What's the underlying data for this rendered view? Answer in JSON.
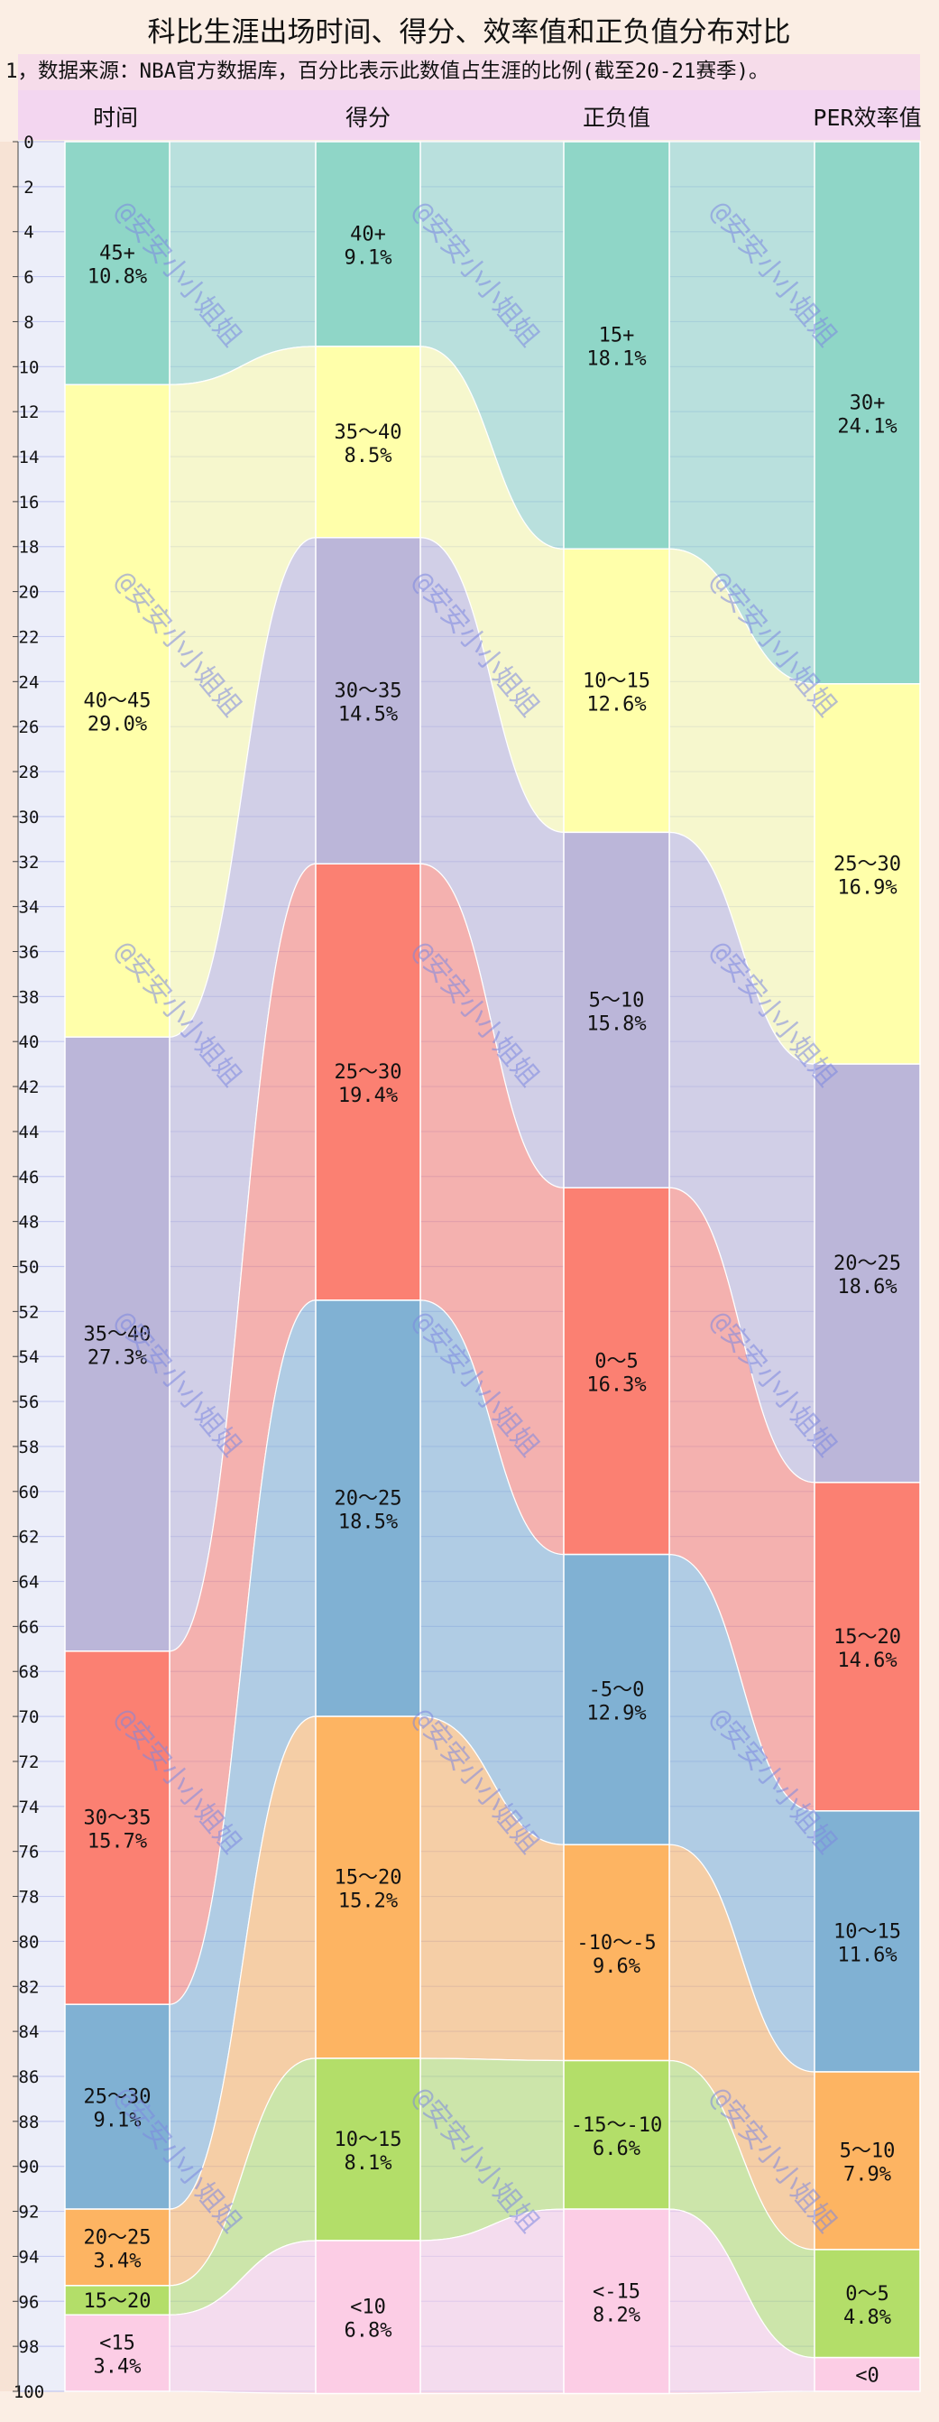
{
  "chart_data": {
    "type": "alluvial",
    "title": "科比生涯出场时间、得分、效率值和正负值分布对比",
    "subtitle": "1，数据来源：NBA官方数据库，百分比表示此数值占生涯的比例(截至20-21赛季)。",
    "watermark": "@安安小小姐姐",
    "ylim": [
      0,
      100
    ],
    "yticks": [
      0,
      2,
      4,
      6,
      8,
      10,
      12,
      14,
      16,
      18,
      20,
      22,
      24,
      26,
      28,
      30,
      32,
      34,
      36,
      38,
      40,
      42,
      44,
      46,
      48,
      50,
      52,
      54,
      56,
      58,
      60,
      62,
      64,
      66,
      68,
      70,
      72,
      74,
      76,
      78,
      80,
      82,
      84,
      86,
      88,
      90,
      92,
      94,
      96,
      98,
      100
    ],
    "colors": {
      "teal": "#8fd6c7",
      "yellow": "#ffffaa",
      "purple": "#bbb6d9",
      "red": "#fb8072",
      "blue": "#80b1d3",
      "orange": "#fdb462",
      "green": "#b3de69",
      "pink": "#fccde5"
    },
    "columns": [
      {
        "name": "时间",
        "segments": [
          {
            "label": "45+",
            "value": 10.8,
            "color": "teal"
          },
          {
            "label": "40～45",
            "value": 29.0,
            "color": "yellow"
          },
          {
            "label": "35～40",
            "value": 27.3,
            "color": "purple"
          },
          {
            "label": "30～35",
            "value": 15.7,
            "color": "red"
          },
          {
            "label": "25～30",
            "value": 9.1,
            "color": "blue"
          },
          {
            "label": "20～25",
            "value": 3.4,
            "color": "orange"
          },
          {
            "label": "15～20",
            "value": 1.3,
            "color": "green",
            "show_pct": false
          },
          {
            "label": "<15",
            "value": 3.4,
            "color": "pink"
          }
        ]
      },
      {
        "name": "得分",
        "segments": [
          {
            "label": "40+",
            "value": 9.1,
            "color": "teal"
          },
          {
            "label": "35～40",
            "value": 8.5,
            "color": "yellow"
          },
          {
            "label": "30～35",
            "value": 14.5,
            "color": "purple"
          },
          {
            "label": "25～30",
            "value": 19.4,
            "color": "red"
          },
          {
            "label": "20～25",
            "value": 18.5,
            "color": "blue"
          },
          {
            "label": "15～20",
            "value": 15.2,
            "color": "orange"
          },
          {
            "label": "10～15",
            "value": 8.1,
            "color": "green"
          },
          {
            "label": "<10",
            "value": 6.8,
            "color": "pink"
          }
        ]
      },
      {
        "name": "正负值",
        "segments": [
          {
            "label": "15+",
            "value": 18.1,
            "color": "teal"
          },
          {
            "label": "10～15",
            "value": 12.6,
            "color": "yellow"
          },
          {
            "label": "5～10",
            "value": 15.8,
            "color": "purple"
          },
          {
            "label": "0～5",
            "value": 16.3,
            "color": "red"
          },
          {
            "label": "-5～0",
            "value": 12.9,
            "color": "blue"
          },
          {
            "label": "-10～-5",
            "value": 9.6,
            "color": "orange"
          },
          {
            "label": "-15～-10",
            "value": 6.6,
            "color": "green"
          },
          {
            "label": "<-15",
            "value": 8.2,
            "color": "pink"
          }
        ]
      },
      {
        "name": "PER效率值",
        "segments": [
          {
            "label": "30+",
            "value": 24.1,
            "color": "teal"
          },
          {
            "label": "25～30",
            "value": 16.9,
            "color": "yellow"
          },
          {
            "label": "20～25",
            "value": 18.6,
            "color": "purple"
          },
          {
            "label": "15～20",
            "value": 14.6,
            "color": "red"
          },
          {
            "label": "10～15",
            "value": 11.6,
            "color": "blue"
          },
          {
            "label": "5～10",
            "value": 7.9,
            "color": "orange"
          },
          {
            "label": "0～5",
            "value": 4.8,
            "color": "green"
          },
          {
            "label": "<0",
            "value": 1.5,
            "color": "pink",
            "show_pct": false
          }
        ]
      }
    ]
  }
}
